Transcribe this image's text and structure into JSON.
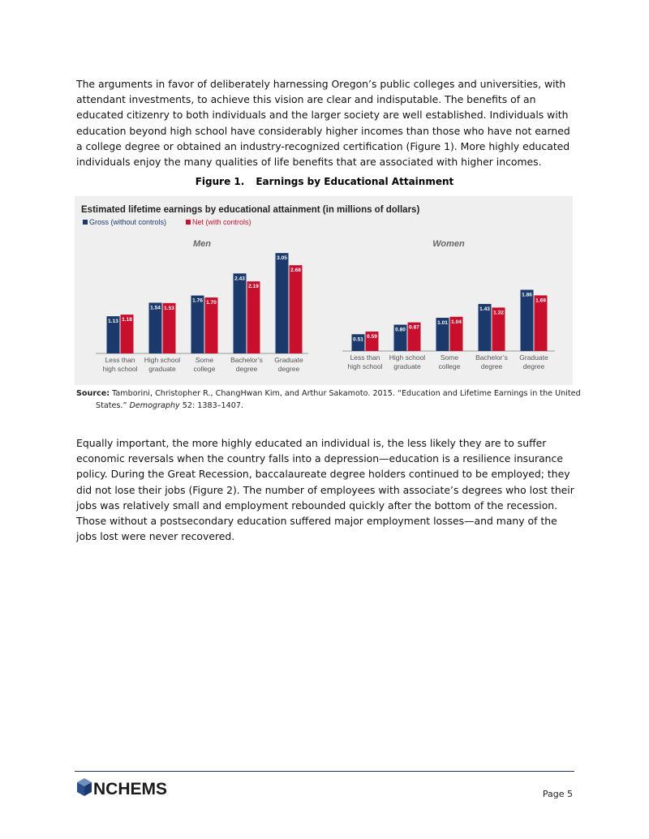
{
  "paragraphs": [
    "The arguments in favor of deliberately harnessing Oregon’s public colleges and universities, with attendant investments, to achieve this vision are clear and indisputable. The benefits of an educated citizenry to both individuals and the larger society are well established. Individuals with education beyond high school have considerably higher incomes than those who have not earned a college degree or obtained an industry-recognized certification (Figure 1). More highly educated individuals enjoy the many qualities of life benefits that are associated with higher incomes.",
    "Equally important, the more highly educated an individual is, the less likely they are to suffer economic reversals when the country falls into a depression—education is a resilience insurance policy. During the Great Recession, baccalaureate degree holders continued to be employed; they did not lose their jobs (Figure 2). The number of employees with associate’s degrees who lost their jobs was relatively small and employment rebounded quickly after the bottom of the recession. Those without a postsecondary education suffered major employment losses—and many of the jobs lost were never recovered."
  ],
  "figure": {
    "label": "Figure 1.",
    "caption": "Earnings by Educational Attainment",
    "chart": {
      "type": "bar",
      "title": "Estimated lifetime earnings by educational attainment (in millions of dollars)",
      "series": [
        {
          "name": "Gross (without controls)",
          "color": "#1b3a6b"
        },
        {
          "name": "Net (with controls)",
          "color": "#c8102e"
        }
      ],
      "panels": [
        {
          "title": "Men",
          "categories": [
            [
              "Less than",
              "high school"
            ],
            [
              "High school",
              "graduate"
            ],
            [
              "Some",
              "college"
            ],
            [
              "Bachelor’s",
              "degree"
            ],
            [
              "Graduate",
              "degree"
            ]
          ],
          "values": [
            [
              1.13,
              1.54,
              1.76,
              2.43,
              3.05
            ],
            [
              1.18,
              1.53,
              1.7,
              2.19,
              2.68
            ]
          ],
          "value_labels": [
            [
              "1.13",
              "1.54",
              "1.76",
              "2.43",
              "3.05"
            ],
            [
              "1.18",
              "1.53",
              "1.70",
              "2.19",
              "2.68"
            ]
          ]
        },
        {
          "title": "Women",
          "categories": [
            [
              "Less than",
              "high school"
            ],
            [
              "High school",
              "graduate"
            ],
            [
              "Some",
              "college"
            ],
            [
              "Bachelor’s",
              "degree"
            ],
            [
              "Graduate",
              "degree"
            ]
          ],
          "values": [
            [
              0.51,
              0.8,
              1.01,
              1.43,
              1.86
            ],
            [
              0.59,
              0.87,
              1.04,
              1.32,
              1.69
            ]
          ],
          "value_labels": [
            [
              "0.51",
              "0.80",
              "1.01",
              "1.43",
              "1.86"
            ],
            [
              "0.59",
              "0.87",
              "1.04",
              "1.32",
              "1.69"
            ]
          ]
        }
      ]
    },
    "source": {
      "label": "Source:",
      "text": "Tamborini, Christopher R., ChangHwan Kim, and Arthur Sakamoto. 2015. “Education and Lifetime Earnings in the United States.” ",
      "journal": "Demography",
      "rest": " 52: 1383–1407."
    }
  },
  "footer": {
    "logo": "NCHEMS",
    "page": "Page 5"
  }
}
